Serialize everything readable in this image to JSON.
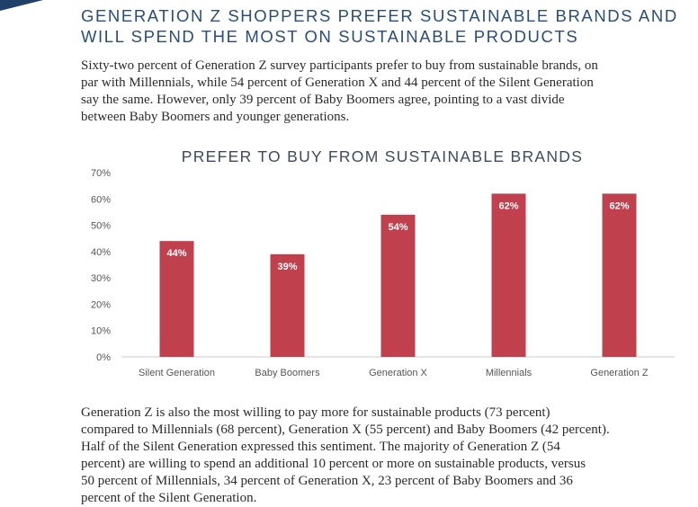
{
  "header": {
    "line1": "GENERATION Z SHOPPERS PREFER SUSTAINABLE BRANDS AND",
    "line2": "WILL SPEND THE MOST ON SUSTAINABLE PRODUCTS"
  },
  "intro": {
    "line1": "Sixty-two percent of Generation Z survey participants prefer to buy from sustainable brands, on",
    "line2": "par with Millennials, while 54 percent of Generation X and 44 percent of the Silent Generation",
    "line3": "say the same. However, only 39 percent of Baby Boomers agree, pointing to a vast divide",
    "line4": "between Baby Boomers and younger generations."
  },
  "colors": {
    "bar": "#c0404e",
    "heading": "#2a4d7a",
    "axis": "#cccccc",
    "accent": "#1f4068"
  },
  "chart_data": {
    "type": "bar",
    "title": "PREFER TO BUY FROM SUSTAINABLE BRANDS",
    "categories": [
      "Silent Generation",
      "Baby Boomers",
      "Generation X",
      "Millennials",
      "Generation Z"
    ],
    "values": [
      44,
      39,
      54,
      62,
      62
    ],
    "data_labels": [
      "44%",
      "39%",
      "54%",
      "62%",
      "62%"
    ],
    "yticks": [
      0,
      10,
      20,
      30,
      40,
      50,
      60,
      70
    ],
    "ytick_labels": [
      "0%",
      "10%",
      "20%",
      "30%",
      "40%",
      "50%",
      "60%",
      "70%"
    ],
    "ylim": [
      0,
      70
    ],
    "grid": false,
    "xlabel": "",
    "ylabel": ""
  },
  "closing": {
    "line1": "Generation Z is also the most willing to pay more for sustainable products (73 percent)",
    "line2": "compared to Millennials (68 percent), Generation X (55 percent) and Baby Boomers (42 percent).",
    "line3": "Half of the Silent Generation expressed this sentiment. The majority of Generation Z (54",
    "line4": "percent) are willing to spend an additional 10 percent or more on sustainable products, versus",
    "line5": "50 percent of Millennials, 34 percent of Generation X, 23 percent of Baby Boomers and 36",
    "line6": "percent of the Silent Generation."
  }
}
